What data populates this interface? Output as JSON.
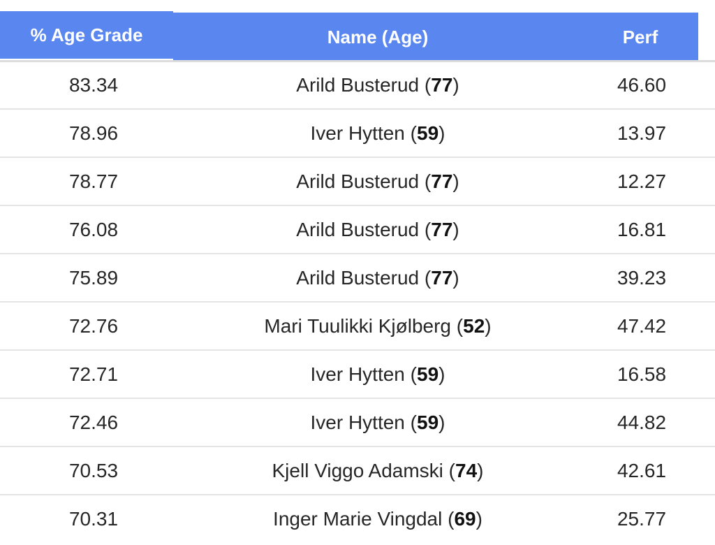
{
  "header": {
    "col_grade": "% Age Grade",
    "col_name": "Name (Age)",
    "col_perf": "Perf"
  },
  "colors": {
    "header_bg": "#5a86f0",
    "header_text": "#ffffff",
    "row_divider": "#e4e4e4"
  },
  "rows": [
    {
      "grade": "83.34",
      "name": "Arild Busterud",
      "age": "77",
      "perf": "46.60"
    },
    {
      "grade": "78.96",
      "name": "Iver Hytten",
      "age": "59",
      "perf": "13.97"
    },
    {
      "grade": "78.77",
      "name": "Arild Busterud",
      "age": "77",
      "perf": "12.27"
    },
    {
      "grade": "76.08",
      "name": "Arild Busterud",
      "age": "77",
      "perf": "16.81"
    },
    {
      "grade": "75.89",
      "name": "Arild Busterud",
      "age": "77",
      "perf": "39.23"
    },
    {
      "grade": "72.76",
      "name": "Mari Tuulikki Kjølberg",
      "age": "52",
      "perf": "47.42"
    },
    {
      "grade": "72.71",
      "name": "Iver Hytten",
      "age": "59",
      "perf": "16.58"
    },
    {
      "grade": "72.46",
      "name": "Iver Hytten",
      "age": "59",
      "perf": "44.82"
    },
    {
      "grade": "70.53",
      "name": "Kjell Viggo Adamski",
      "age": "74",
      "perf": "42.61"
    },
    {
      "grade": "70.31",
      "name": "Inger Marie Vingdal",
      "age": "69",
      "perf": "25.77"
    }
  ]
}
